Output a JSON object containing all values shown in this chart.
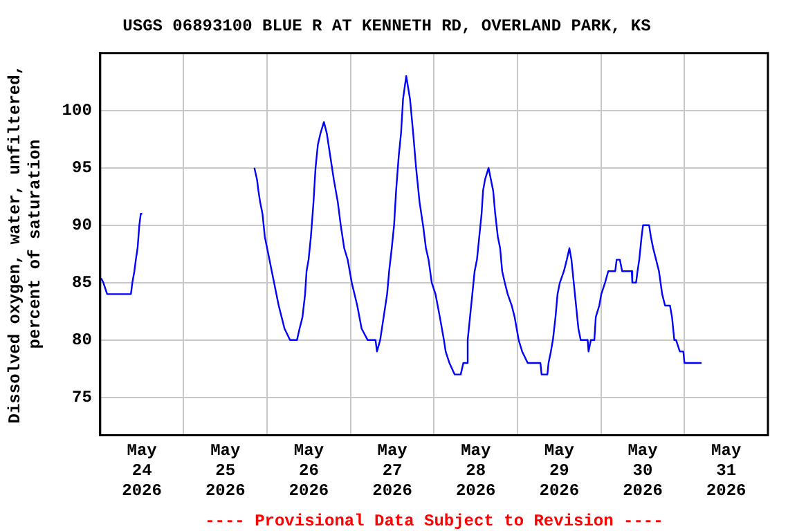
{
  "chart_data": {
    "type": "line",
    "title": "USGS 06893100 BLUE R AT KENNETH RD, OVERLAND PARK, KS",
    "ylabel": "Dissolved oxygen, water, unfiltered,\npercent of saturation",
    "annotations": [
      "---- Provisional Data Subject to Revision ----"
    ],
    "xlim": [
      "2026-05-24T00:00",
      "2026-06-01T00:00"
    ],
    "xticks": [
      {
        "value": "2026-05-24T00:00",
        "label": null
      },
      {
        "value": "2026-05-24T12:00",
        "label": "May\n24\n2026"
      },
      {
        "value": "2026-05-25T00:00",
        "label": null
      },
      {
        "value": "2026-05-25T12:00",
        "label": "May\n25\n2026"
      },
      {
        "value": "2026-05-26T00:00",
        "label": null
      },
      {
        "value": "2026-05-26T12:00",
        "label": "May\n26\n2026"
      },
      {
        "value": "2026-05-27T00:00",
        "label": null
      },
      {
        "value": "2026-05-27T12:00",
        "label": "May\n27\n2026"
      },
      {
        "value": "2026-05-28T00:00",
        "label": null
      },
      {
        "value": "2026-05-28T12:00",
        "label": "May\n28\n2026"
      },
      {
        "value": "2026-05-29T00:00",
        "label": null
      },
      {
        "value": "2026-05-29T12:00",
        "label": "May\n29\n2026"
      },
      {
        "value": "2026-05-30T00:00",
        "label": null
      },
      {
        "value": "2026-05-30T12:00",
        "label": "May\n30\n2026"
      },
      {
        "value": "2026-05-31T00:00",
        "label": null
      },
      {
        "value": "2026-05-31T12:00",
        "label": "May\n31\n2026"
      },
      {
        "value": "2026-06-01T00:00",
        "label": null
      }
    ],
    "ylim": [
      71.7,
      105
    ],
    "yticks": [
      75,
      80,
      85,
      90,
      95,
      100
    ],
    "grid": true,
    "legend": false,
    "marker": "none",
    "line_style": "solid",
    "x": [
      "2026-05-24T00:15",
      "2026-05-24T00:55",
      "2026-05-24T02:00",
      "2026-05-24T08:50",
      "2026-05-24T09:15",
      "2026-05-24T09:50",
      "2026-05-24T10:15",
      "2026-05-24T10:45",
      "2026-05-24T11:15",
      "2026-05-24T11:40",
      "2026-05-24T12:05",
      "2026-05-25T06:00",
      "2026-05-25T20:20",
      "2026-05-25T21:05",
      "2026-05-25T21:30",
      "2026-05-25T22:00",
      "2026-05-25T22:40",
      "2026-05-25T23:20",
      "2026-05-26T00:00",
      "2026-05-26T00:40",
      "2026-05-26T01:20",
      "2026-05-26T02:00",
      "2026-05-26T02:40",
      "2026-05-26T03:20",
      "2026-05-26T04:10",
      "2026-05-26T05:00",
      "2026-05-26T06:35",
      "2026-05-26T08:35",
      "2026-05-26T09:20",
      "2026-05-26T10:10",
      "2026-05-26T10:55",
      "2026-05-26T11:20",
      "2026-05-26T11:55",
      "2026-05-26T12:35",
      "2026-05-26T13:20",
      "2026-05-26T13:55",
      "2026-05-26T14:35",
      "2026-05-26T15:20",
      "2026-05-26T16:20",
      "2026-05-26T17:10",
      "2026-05-26T18:10",
      "2026-05-26T19:10",
      "2026-05-26T20:20",
      "2026-05-26T21:10",
      "2026-05-26T22:10",
      "2026-05-26T23:10",
      "2026-05-27T00:20",
      "2026-05-27T01:55",
      "2026-05-27T03:10",
      "2026-05-27T04:55",
      "2026-05-27T07:10",
      "2026-05-27T07:35",
      "2026-05-27T08:30",
      "2026-05-27T09:30",
      "2026-05-27T10:30",
      "2026-05-27T11:05",
      "2026-05-27T11:50",
      "2026-05-27T12:30",
      "2026-05-27T13:05",
      "2026-05-27T13:50",
      "2026-05-27T14:30",
      "2026-05-27T15:05",
      "2026-05-27T16:00",
      "2026-05-27T17:05",
      "2026-05-27T18:00",
      "2026-05-27T18:50",
      "2026-05-27T19:50",
      "2026-05-27T20:50",
      "2026-05-27T21:40",
      "2026-05-27T22:25",
      "2026-05-27T23:20",
      "2026-05-28T00:25",
      "2026-05-28T01:40",
      "2026-05-28T02:50",
      "2026-05-28T03:20",
      "2026-05-28T04:25",
      "2026-05-28T05:55",
      "2026-05-28T07:40",
      "2026-05-28T08:25",
      "2026-05-28T09:20",
      "2026-05-28T09:40",
      "2026-05-28T10:20",
      "2026-05-28T11:00",
      "2026-05-28T11:40",
      "2026-05-28T12:20",
      "2026-05-28T13:00",
      "2026-05-28T13:40",
      "2026-05-28T14:05",
      "2026-05-28T14:40",
      "2026-05-28T15:40",
      "2026-05-28T16:20",
      "2026-05-28T17:00",
      "2026-05-28T17:35",
      "2026-05-28T18:20",
      "2026-05-28T19:00",
      "2026-05-28T19:35",
      "2026-05-28T20:20",
      "2026-05-28T21:10",
      "2026-05-28T22:20",
      "2026-05-28T23:10",
      "2026-05-29T00:20",
      "2026-05-29T01:20",
      "2026-05-29T02:55",
      "2026-05-29T06:35",
      "2026-05-29T06:55",
      "2026-05-29T08:35",
      "2026-05-29T08:55",
      "2026-05-29T09:35",
      "2026-05-29T10:10",
      "2026-05-29T10:55",
      "2026-05-29T11:30",
      "2026-05-29T12:10",
      "2026-05-29T13:20",
      "2026-05-29T14:10",
      "2026-05-29T14:55",
      "2026-05-29T15:30",
      "2026-05-29T16:10",
      "2026-05-29T16:50",
      "2026-05-29T17:30",
      "2026-05-29T18:10",
      "2026-05-29T20:10",
      "2026-05-29T20:25",
      "2026-05-29T21:05",
      "2026-05-29T22:05",
      "2026-05-29T22:30",
      "2026-05-29T23:30",
      "2026-05-30T00:05",
      "2026-05-30T01:10",
      "2026-05-30T02:05",
      "2026-05-30T04:05",
      "2026-05-30T04:30",
      "2026-05-30T05:25",
      "2026-05-30T06:05",
      "2026-05-30T08:50",
      "2026-05-30T09:00",
      "2026-05-30T10:05",
      "2026-05-30T10:30",
      "2026-05-30T11:00",
      "2026-05-30T11:40",
      "2026-05-30T12:05",
      "2026-05-30T13:50",
      "2026-05-30T14:20",
      "2026-05-30T15:00",
      "2026-05-30T15:50",
      "2026-05-30T16:40",
      "2026-05-30T17:35",
      "2026-05-30T18:25",
      "2026-05-30T19:50",
      "2026-05-30T20:25",
      "2026-05-30T21:05",
      "2026-05-30T21:35",
      "2026-05-30T22:40",
      "2026-05-30T23:40",
      "2026-05-31T00:00",
      "2026-05-31T04:55"
    ],
    "series": [
      {
        "color": "#0000ff",
        "values": [
          85.4,
          85,
          84,
          84,
          85,
          86,
          87,
          88,
          90,
          91,
          91,
          null,
          95,
          94,
          93,
          92,
          91,
          89,
          88,
          87,
          86,
          85,
          84,
          83,
          82,
          81,
          80,
          80,
          81,
          82,
          84,
          86,
          87,
          89,
          92,
          95,
          97,
          98,
          99,
          98,
          96,
          94,
          92,
          90,
          88,
          87,
          85,
          83,
          81,
          80,
          80,
          79,
          80,
          82,
          84,
          86,
          88,
          90,
          93,
          96,
          98,
          101,
          103,
          101,
          98,
          95,
          92,
          90,
          88,
          87,
          85,
          84,
          82,
          80,
          79,
          78,
          77,
          77,
          78,
          78,
          80,
          82,
          84,
          86,
          87,
          89,
          91,
          93,
          94,
          95,
          94,
          93,
          91,
          89,
          88,
          86,
          85,
          84,
          83,
          82,
          80,
          79,
          78,
          78,
          77,
          77,
          78,
          79,
          80,
          82,
          84,
          85,
          86,
          87,
          88,
          87,
          85,
          83,
          81,
          80,
          80,
          79,
          80,
          80,
          82,
          83,
          84,
          85,
          86,
          86,
          87,
          87,
          86,
          86,
          85,
          85,
          86,
          87,
          89,
          90,
          90,
          89,
          88,
          87,
          86,
          84,
          83,
          83,
          82,
          80,
          80,
          79,
          79,
          78,
          78
        ]
      }
    ]
  }
}
